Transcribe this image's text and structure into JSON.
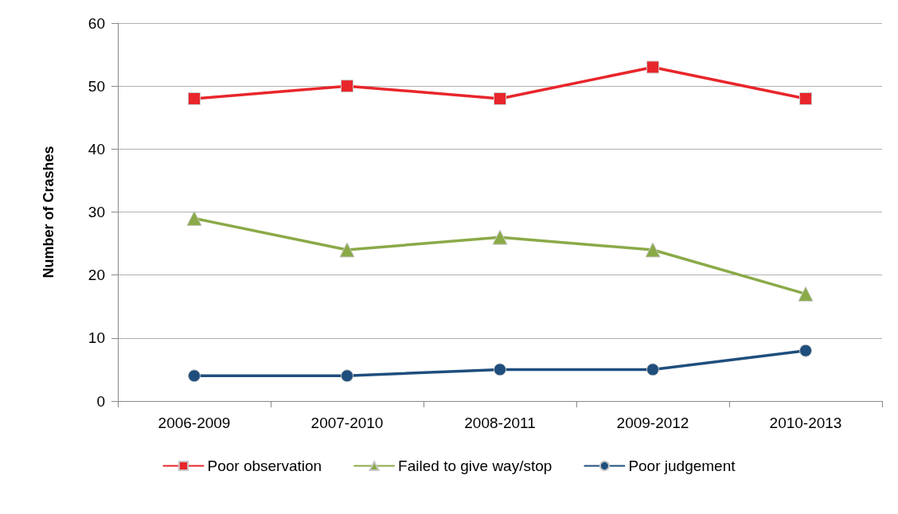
{
  "chart_data": {
    "type": "line",
    "ylabel": "Number of Crashes",
    "categories": [
      "2006-2009",
      "2007-2010",
      "2008-2011",
      "2009-2012",
      "2010-2013"
    ],
    "series": [
      {
        "name": "Poor observation",
        "color": "#e8262b",
        "marker": "square",
        "values": [
          48,
          50,
          48,
          53,
          48
        ]
      },
      {
        "name": "Failed to give way/stop",
        "color": "#8aaa48",
        "marker": "triangle",
        "values": [
          29,
          24,
          26,
          24,
          17
        ]
      },
      {
        "name": "Poor judgement",
        "color": "#1f4e7d",
        "marker": "circle",
        "values": [
          4,
          4,
          5,
          5,
          8
        ]
      }
    ],
    "ylim": [
      0,
      60
    ],
    "yticks": [
      0,
      10,
      20,
      30,
      40,
      50,
      60
    ],
    "grid": "y",
    "legend": "bottom",
    "line_style": "solid"
  }
}
